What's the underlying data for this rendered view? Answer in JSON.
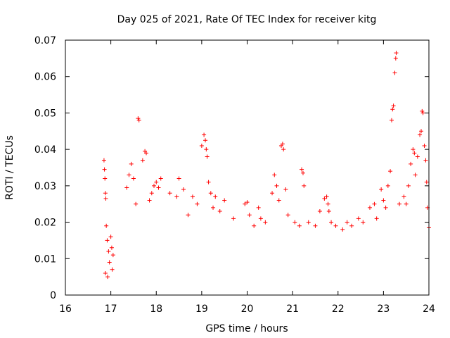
{
  "chart_data": {
    "type": "scatter",
    "title": "Day 025 of 2021, Rate Of TEC Index for receiver kitg",
    "xlabel": "GPS time / hours",
    "ylabel": "ROTI / TECUs",
    "xlim": [
      16,
      24
    ],
    "ylim": [
      0,
      0.07
    ],
    "x_ticks": [
      "16",
      "17",
      "18",
      "19",
      "20",
      "21",
      "22",
      "23",
      "24"
    ],
    "y_ticks": [
      "0",
      "0.01",
      "0.02",
      "0.03",
      "0.04",
      "0.05",
      "0.06",
      "0.07"
    ],
    "grid": false,
    "marker": "+",
    "color": "#ff0000",
    "series": [
      {
        "name": "ROTI",
        "points": [
          [
            16.85,
            0.037
          ],
          [
            16.86,
            0.0345
          ],
          [
            16.87,
            0.032
          ],
          [
            16.88,
            0.028
          ],
          [
            16.89,
            0.0265
          ],
          [
            16.9,
            0.019
          ],
          [
            16.92,
            0.015
          ],
          [
            16.95,
            0.012
          ],
          [
            16.97,
            0.009
          ],
          [
            17.0,
            0.016
          ],
          [
            17.02,
            0.013
          ],
          [
            17.05,
            0.011
          ],
          [
            16.88,
            0.006
          ],
          [
            16.93,
            0.005
          ],
          [
            17.03,
            0.007
          ],
          [
            17.35,
            0.0295
          ],
          [
            17.4,
            0.033
          ],
          [
            17.45,
            0.036
          ],
          [
            17.5,
            0.032
          ],
          [
            17.55,
            0.025
          ],
          [
            17.6,
            0.0485
          ],
          [
            17.62,
            0.048
          ],
          [
            17.7,
            0.037
          ],
          [
            17.75,
            0.0395
          ],
          [
            17.78,
            0.039
          ],
          [
            17.85,
            0.026
          ],
          [
            17.9,
            0.028
          ],
          [
            17.95,
            0.03
          ],
          [
            18.0,
            0.031
          ],
          [
            18.05,
            0.0295
          ],
          [
            18.1,
            0.032
          ],
          [
            18.3,
            0.028
          ],
          [
            18.45,
            0.027
          ],
          [
            18.5,
            0.032
          ],
          [
            18.6,
            0.029
          ],
          [
            18.7,
            0.022
          ],
          [
            18.8,
            0.027
          ],
          [
            18.9,
            0.025
          ],
          [
            19.0,
            0.041
          ],
          [
            19.05,
            0.044
          ],
          [
            19.08,
            0.0425
          ],
          [
            19.1,
            0.04
          ],
          [
            19.12,
            0.038
          ],
          [
            19.15,
            0.031
          ],
          [
            19.2,
            0.028
          ],
          [
            19.25,
            0.024
          ],
          [
            19.3,
            0.027
          ],
          [
            19.4,
            0.023
          ],
          [
            19.5,
            0.026
          ],
          [
            19.7,
            0.021
          ],
          [
            19.95,
            0.025
          ],
          [
            20.0,
            0.0255
          ],
          [
            20.05,
            0.022
          ],
          [
            20.15,
            0.019
          ],
          [
            20.25,
            0.024
          ],
          [
            20.3,
            0.021
          ],
          [
            20.4,
            0.02
          ],
          [
            20.55,
            0.028
          ],
          [
            20.6,
            0.033
          ],
          [
            20.65,
            0.03
          ],
          [
            20.7,
            0.026
          ],
          [
            20.75,
            0.041
          ],
          [
            20.78,
            0.0415
          ],
          [
            20.8,
            0.04
          ],
          [
            20.85,
            0.029
          ],
          [
            20.9,
            0.022
          ],
          [
            21.05,
            0.02
          ],
          [
            21.15,
            0.019
          ],
          [
            21.2,
            0.0345
          ],
          [
            21.23,
            0.0335
          ],
          [
            21.25,
            0.03
          ],
          [
            21.35,
            0.02
          ],
          [
            21.5,
            0.019
          ],
          [
            21.6,
            0.023
          ],
          [
            21.7,
            0.0265
          ],
          [
            21.75,
            0.027
          ],
          [
            21.78,
            0.025
          ],
          [
            21.8,
            0.023
          ],
          [
            21.85,
            0.02
          ],
          [
            21.95,
            0.019
          ],
          [
            22.1,
            0.018
          ],
          [
            22.2,
            0.02
          ],
          [
            22.3,
            0.019
          ],
          [
            22.45,
            0.021
          ],
          [
            22.55,
            0.02
          ],
          [
            22.7,
            0.024
          ],
          [
            22.8,
            0.025
          ],
          [
            22.85,
            0.021
          ],
          [
            22.95,
            0.029
          ],
          [
            23.0,
            0.026
          ],
          [
            23.05,
            0.024
          ],
          [
            23.1,
            0.03
          ],
          [
            23.15,
            0.034
          ],
          [
            23.18,
            0.048
          ],
          [
            23.2,
            0.051
          ],
          [
            23.22,
            0.052
          ],
          [
            23.25,
            0.061
          ],
          [
            23.27,
            0.065
          ],
          [
            23.28,
            0.0665
          ],
          [
            23.35,
            0.025
          ],
          [
            23.45,
            0.027
          ],
          [
            23.5,
            0.025
          ],
          [
            23.55,
            0.03
          ],
          [
            23.6,
            0.036
          ],
          [
            23.65,
            0.04
          ],
          [
            23.68,
            0.039
          ],
          [
            23.7,
            0.033
          ],
          [
            23.75,
            0.038
          ],
          [
            23.8,
            0.044
          ],
          [
            23.83,
            0.045
          ],
          [
            23.85,
            0.0505
          ],
          [
            23.87,
            0.05
          ],
          [
            23.9,
            0.041
          ],
          [
            23.93,
            0.037
          ],
          [
            23.95,
            0.031
          ],
          [
            23.97,
            0.024
          ],
          [
            24.0,
            0.0185
          ]
        ]
      }
    ]
  }
}
